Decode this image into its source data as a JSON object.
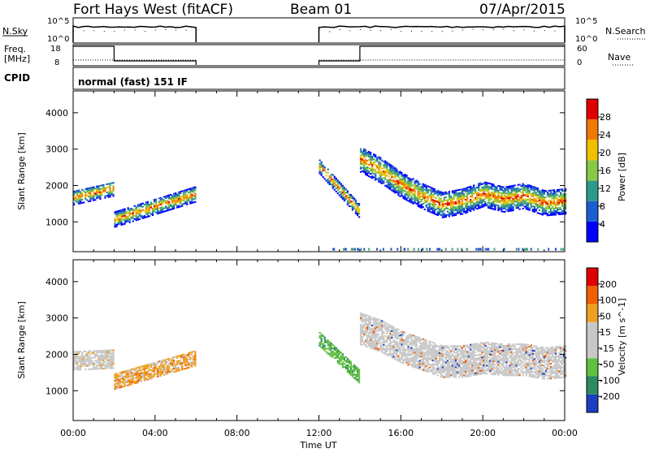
{
  "header": {
    "title": "Fort Hays West (fitACF)",
    "beam": "Beam 01",
    "date": "07/Apr/2015"
  },
  "strips": {
    "nsky_label": "N.Sky",
    "nsky_ticks": [
      "10^5",
      "10^0"
    ],
    "nsearch_label": "N.Search",
    "nsearch_ticks": [
      "10^5",
      "10^0"
    ],
    "freq_label_1": "Freq.",
    "freq_label_2": "[MHz]",
    "freq_ticks": [
      "18",
      "8"
    ],
    "nave_label": "Nave",
    "nave_ticks": [
      "60",
      "0"
    ],
    "cpid_label": "CPID",
    "cpid_text": "normal (fast) 151 IF"
  },
  "chart_data": [
    {
      "type": "heatmap",
      "panel": "power",
      "ylabel": "Slant Range [km]",
      "xlabel": "Time UT",
      "x_ticks": [
        "00:00",
        "04:00",
        "08:00",
        "12:00",
        "16:00",
        "20:00",
        "00:00"
      ],
      "x_range_hours": [
        0,
        24
      ],
      "y_ticks": [
        1000,
        2000,
        3000,
        4000
      ],
      "y_range_km": [
        180,
        4600
      ],
      "colorbar_label": "Power [dB]",
      "colorbar_ticks": [
        "28",
        "24",
        "20",
        "16",
        "12",
        "8",
        "4"
      ],
      "colorbar_colors": [
        "#0000ff",
        "#1a5fd0",
        "#2e9a8a",
        "#88c848",
        "#f0c000",
        "#f07a00",
        "#e00000"
      ],
      "bands": [
        {
          "t0": 0.0,
          "t1": 2.0,
          "r_center": [
            1650,
            1900
          ],
          "width": 400
        },
        {
          "t0": 2.0,
          "t1": 6.0,
          "r_center": [
            1050,
            1750
          ],
          "width": 420
        },
        {
          "t0": 12.0,
          "t1": 14.0,
          "r_center": [
            2500,
            1250
          ],
          "width": 380
        },
        {
          "t0": 14.0,
          "t1": 24.0,
          "r_center_profile": [
            [
              14,
              2700
            ],
            [
              15,
              2400
            ],
            [
              16,
              2000
            ],
            [
              17,
              1700
            ],
            [
              18,
              1450
            ],
            [
              19,
              1550
            ],
            [
              20,
              1750
            ],
            [
              21,
              1600
            ],
            [
              22,
              1700
            ],
            [
              23,
              1500
            ],
            [
              24,
              1550
            ]
          ],
          "width": 700
        }
      ]
    },
    {
      "type": "heatmap",
      "panel": "velocity",
      "ylabel": "Slant Range [km]",
      "xlabel": "Time UT",
      "x_ticks": [
        "00:00",
        "04:00",
        "08:00",
        "12:00",
        "16:00",
        "20:00",
        "00:00"
      ],
      "x_range_hours": [
        0,
        24
      ],
      "y_ticks": [
        1000,
        2000,
        3000,
        4000
      ],
      "y_range_km": [
        180,
        4600
      ],
      "colorbar_label": "Velocity [m s^-1]",
      "colorbar_ticks": [
        "200",
        "100",
        "50",
        "15",
        "-15",
        "-50",
        "-100",
        "-200"
      ],
      "colorbar_colors": [
        "#e00000",
        "#f06000",
        "#f0a020",
        "#c8c8c8",
        "#c8c8c8",
        "#60c040",
        "#2e8a60",
        "#1a3fc0"
      ],
      "bands": [
        {
          "t0": 0.0,
          "t1": 2.0,
          "r_center": [
            1800,
            1850
          ],
          "width": 500
        },
        {
          "t0": 2.0,
          "t1": 6.0,
          "r_center": [
            1250,
            1900
          ],
          "width": 450
        },
        {
          "t0": 12.0,
          "t1": 14.0,
          "r_center": [
            2400,
            1350
          ],
          "width": 380
        },
        {
          "t0": 14.0,
          "t1": 24.0,
          "r_center_profile": [
            [
              14,
              2700
            ],
            [
              15,
              2500
            ],
            [
              16,
              2200
            ],
            [
              17,
              2000
            ],
            [
              18,
              1800
            ],
            [
              19,
              1800
            ],
            [
              20,
              1900
            ],
            [
              21,
              1850
            ],
            [
              22,
              1850
            ],
            [
              23,
              1750
            ],
            [
              24,
              1800
            ]
          ],
          "width": 900
        }
      ]
    }
  ]
}
